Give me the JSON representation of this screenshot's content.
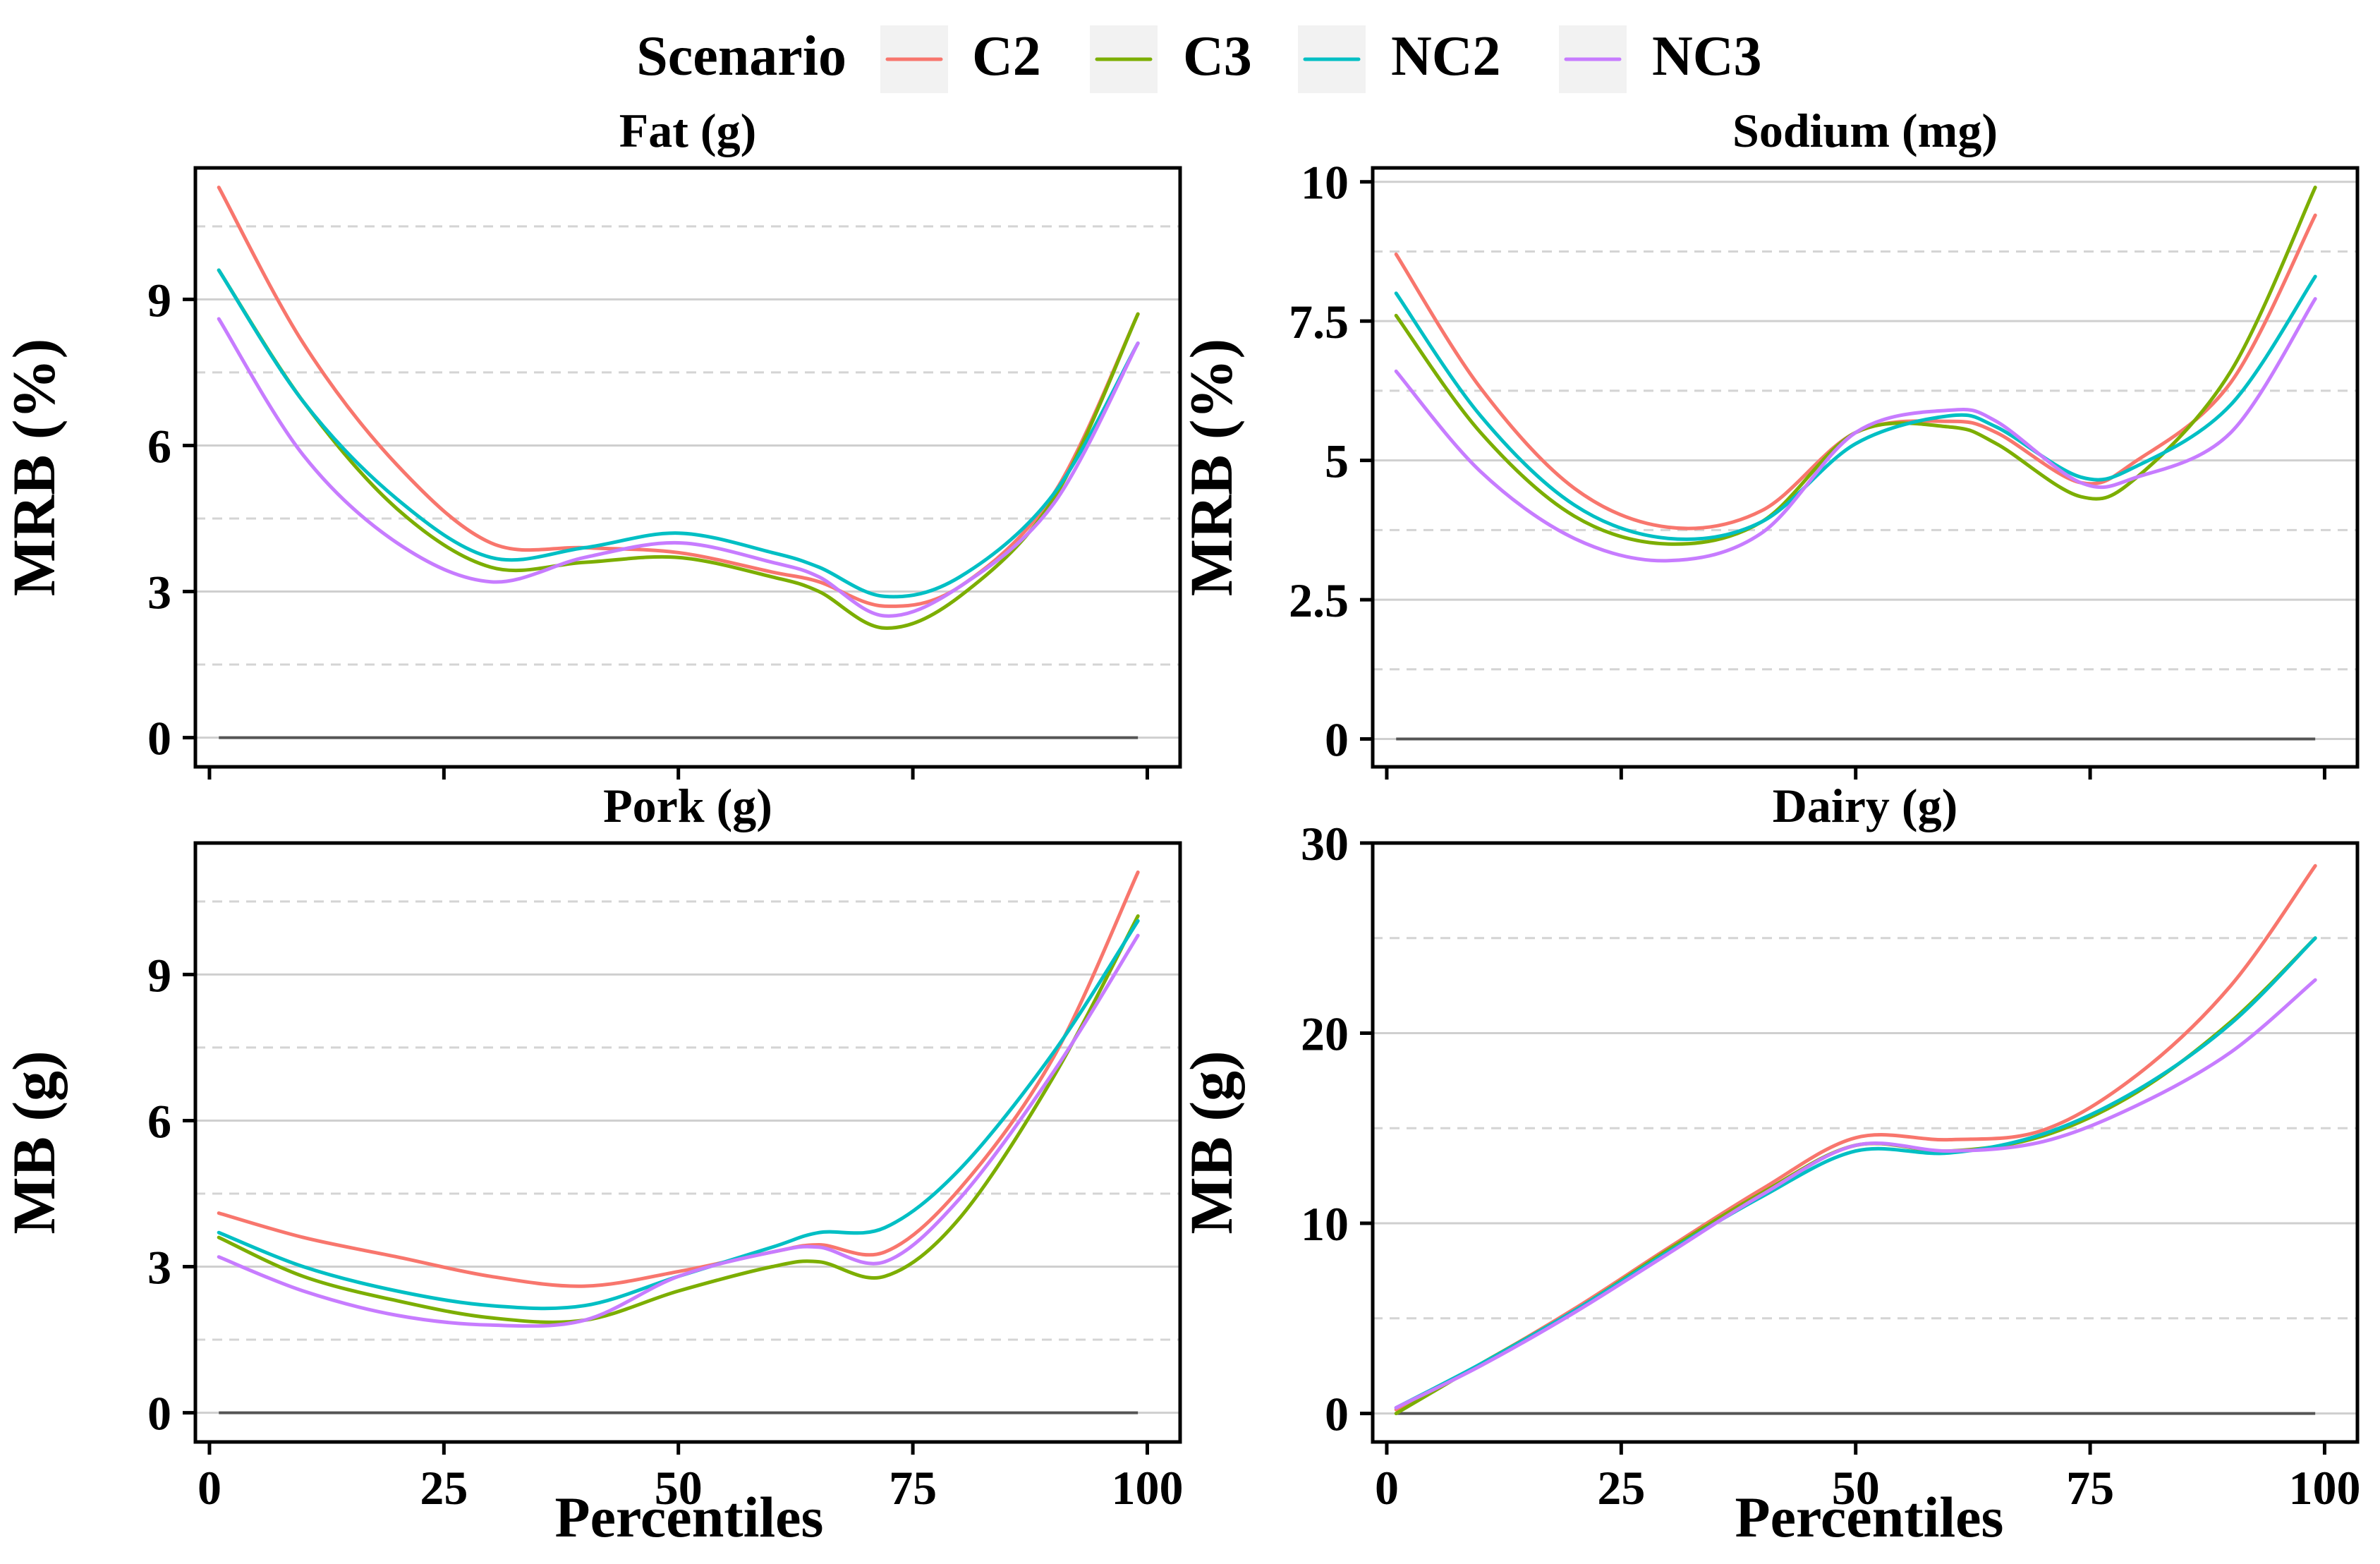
{
  "chart_data": {
    "type": "line",
    "x_label": "Percentiles",
    "legend": {
      "title": "Scenario",
      "entries": [
        {
          "name": "C2",
          "color": "#F8766D"
        },
        {
          "name": "C3",
          "color": "#7CAE00"
        },
        {
          "name": "NC2",
          "color": "#00BFC4"
        },
        {
          "name": "NC3",
          "color": "#C77CFF"
        }
      ]
    },
    "panels": [
      {
        "title": "Fat (g)",
        "ylabel": "MRB (%)",
        "ylim": [
          -0.6,
          11.7
        ],
        "xlim": [
          -1.5,
          103.5
        ],
        "yticks": [
          0,
          3,
          6,
          9
        ],
        "ytick_labels": [
          "0",
          "3",
          "6",
          "9"
        ],
        "minor_yticks": [
          1.5,
          4.5,
          7.5,
          10.5
        ],
        "xticks": [
          0,
          25,
          50,
          75,
          100
        ],
        "xtick_labels": [
          "0",
          "25",
          "50",
          "75",
          "100"
        ],
        "show_x_ticklabels": false,
        "x": [
          1,
          10,
          20,
          30,
          40,
          50,
          60,
          65,
          72,
          80,
          90,
          99
        ],
        "series": [
          {
            "name": "C2",
            "values": [
              11.3,
              8.1,
              5.6,
              4.0,
              3.9,
              3.8,
              3.4,
              3.2,
              2.7,
              3.1,
              5.0,
              8.7
            ]
          },
          {
            "name": "C3",
            "values": [
              9.6,
              6.9,
              4.7,
              3.5,
              3.6,
              3.7,
              3.3,
              3.0,
              2.25,
              2.9,
              4.9,
              8.7
            ]
          },
          {
            "name": "NC2",
            "values": [
              9.6,
              6.9,
              4.9,
              3.7,
              3.9,
              4.2,
              3.8,
              3.5,
              2.9,
              3.3,
              5.0,
              8.1
            ]
          },
          {
            "name": "NC3",
            "values": [
              8.6,
              5.8,
              4.0,
              3.2,
              3.7,
              4.0,
              3.6,
              3.3,
              2.5,
              3.1,
              4.8,
              8.1
            ]
          }
        ]
      },
      {
        "title": "Sodium (mg)",
        "ylabel": "MRB (%)",
        "ylim": [
          -0.5,
          10.25
        ],
        "xlim": [
          -1.5,
          103.5
        ],
        "yticks": [
          0,
          2.5,
          5,
          7.5,
          10
        ],
        "ytick_labels": [
          "0",
          "2.5",
          "5",
          "7.5",
          "10"
        ],
        "minor_yticks": [
          1.25,
          3.75,
          6.25,
          8.75
        ],
        "xticks": [
          0,
          25,
          50,
          75,
          100
        ],
        "xtick_labels": [
          "0",
          "25",
          "50",
          "75",
          "100"
        ],
        "show_x_ticklabels": false,
        "x": [
          1,
          10,
          20,
          30,
          40,
          50,
          60,
          65,
          74,
          80,
          90,
          99
        ],
        "series": [
          {
            "name": "C2",
            "values": [
              8.7,
              6.3,
              4.5,
              3.8,
              4.1,
              5.5,
              5.7,
              5.5,
              4.6,
              5.0,
              6.4,
              9.4
            ]
          },
          {
            "name": "C3",
            "values": [
              7.6,
              5.5,
              4.0,
              3.5,
              3.9,
              5.5,
              5.6,
              5.3,
              4.35,
              4.7,
              6.6,
              9.9
            ]
          },
          {
            "name": "NC2",
            "values": [
              8.0,
              5.8,
              4.2,
              3.6,
              3.9,
              5.3,
              5.8,
              5.6,
              4.7,
              4.9,
              6.0,
              8.3
            ]
          },
          {
            "name": "NC3",
            "values": [
              6.6,
              4.8,
              3.6,
              3.2,
              3.7,
              5.5,
              5.9,
              5.7,
              4.6,
              4.7,
              5.5,
              7.9
            ]
          }
        ]
      },
      {
        "title": "Pork (g)",
        "ylabel": "MB (g)",
        "ylim": [
          -0.6,
          11.7
        ],
        "xlim": [
          -1.5,
          103.5
        ],
        "yticks": [
          0,
          3,
          6,
          9
        ],
        "ytick_labels": [
          "0",
          "3",
          "6",
          "9"
        ],
        "minor_yticks": [
          1.5,
          4.5,
          7.5,
          10.5
        ],
        "xticks": [
          0,
          25,
          50,
          75,
          100
        ],
        "xtick_labels": [
          "0",
          "25",
          "50",
          "75",
          "100"
        ],
        "show_x_ticklabels": true,
        "x": [
          1,
          10,
          20,
          30,
          40,
          50,
          60,
          65,
          72,
          80,
          90,
          99
        ],
        "series": [
          {
            "name": "C2",
            "values": [
              4.1,
              3.6,
              3.2,
              2.8,
              2.6,
              2.9,
              3.3,
              3.45,
              3.3,
              4.6,
              7.3,
              11.1
            ]
          },
          {
            "name": "C3",
            "values": [
              3.6,
              2.8,
              2.3,
              1.95,
              1.9,
              2.5,
              3.0,
              3.1,
              2.8,
              4.0,
              6.9,
              10.2
            ]
          },
          {
            "name": "NC2",
            "values": [
              3.7,
              3.0,
              2.5,
              2.2,
              2.2,
              2.8,
              3.4,
              3.7,
              3.8,
              5.0,
              7.4,
              10.1
            ]
          },
          {
            "name": "NC3",
            "values": [
              3.2,
              2.5,
              2.0,
              1.8,
              1.9,
              2.8,
              3.3,
              3.4,
              3.1,
              4.4,
              7.0,
              9.8
            ]
          }
        ]
      },
      {
        "title": "Dairy (g)",
        "ylabel": "MB (g)",
        "ylim": [
          -1.5,
          30.0
        ],
        "xlim": [
          -1.5,
          103.5
        ],
        "yticks": [
          0,
          10,
          20,
          30
        ],
        "ytick_labels": [
          "0",
          "10",
          "20",
          "30"
        ],
        "minor_yticks": [
          5,
          15,
          25
        ],
        "xticks": [
          0,
          25,
          50,
          75,
          100
        ],
        "xtick_labels": [
          "0",
          "25",
          "50",
          "75",
          "100"
        ],
        "show_x_ticklabels": true,
        "x": [
          1,
          10,
          20,
          30,
          40,
          50,
          60,
          70,
          80,
          90,
          99
        ],
        "series": [
          {
            "name": "C2",
            "values": [
              0.2,
              2.6,
              5.5,
              8.7,
              11.8,
              14.5,
              14.4,
              14.9,
              17.8,
              22.5,
              28.8
            ]
          },
          {
            "name": "C3",
            "values": [
              0.0,
              2.6,
              5.4,
              8.6,
              11.6,
              14.1,
              13.8,
              14.6,
              16.9,
              20.6,
              25.0
            ]
          },
          {
            "name": "NC2",
            "values": [
              0.3,
              2.6,
              5.4,
              8.5,
              11.4,
              13.8,
              13.7,
              14.7,
              17.0,
              20.5,
              25.0
            ]
          },
          {
            "name": "NC3",
            "values": [
              0.3,
              2.5,
              5.3,
              8.4,
              11.5,
              14.1,
              13.8,
              14.3,
              16.2,
              19.0,
              22.8
            ]
          }
        ]
      }
    ]
  }
}
